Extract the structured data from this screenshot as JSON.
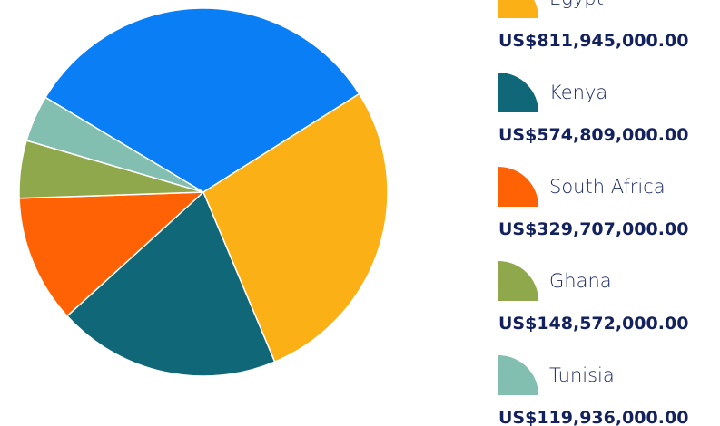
{
  "chart_data": {
    "type": "pie",
    "categories": [
      null,
      "Egypt",
      "Kenya",
      "South Africa",
      "Ghana",
      "Tunisia"
    ],
    "values": [
      952000000,
      811945000,
      574809000,
      329707000,
      148572000,
      119936000
    ],
    "value_labels": [
      null,
      "US$811,945,000.00",
      "US$574,809,000.00",
      "US$329,707,000.00",
      "US$148,572,000.00",
      "US$119,936,000.00"
    ],
    "colors": [
      "#0a7ef5",
      "#fbb116",
      "#106777",
      "#ff6105",
      "#8fa84c",
      "#83bfb0"
    ]
  }
}
